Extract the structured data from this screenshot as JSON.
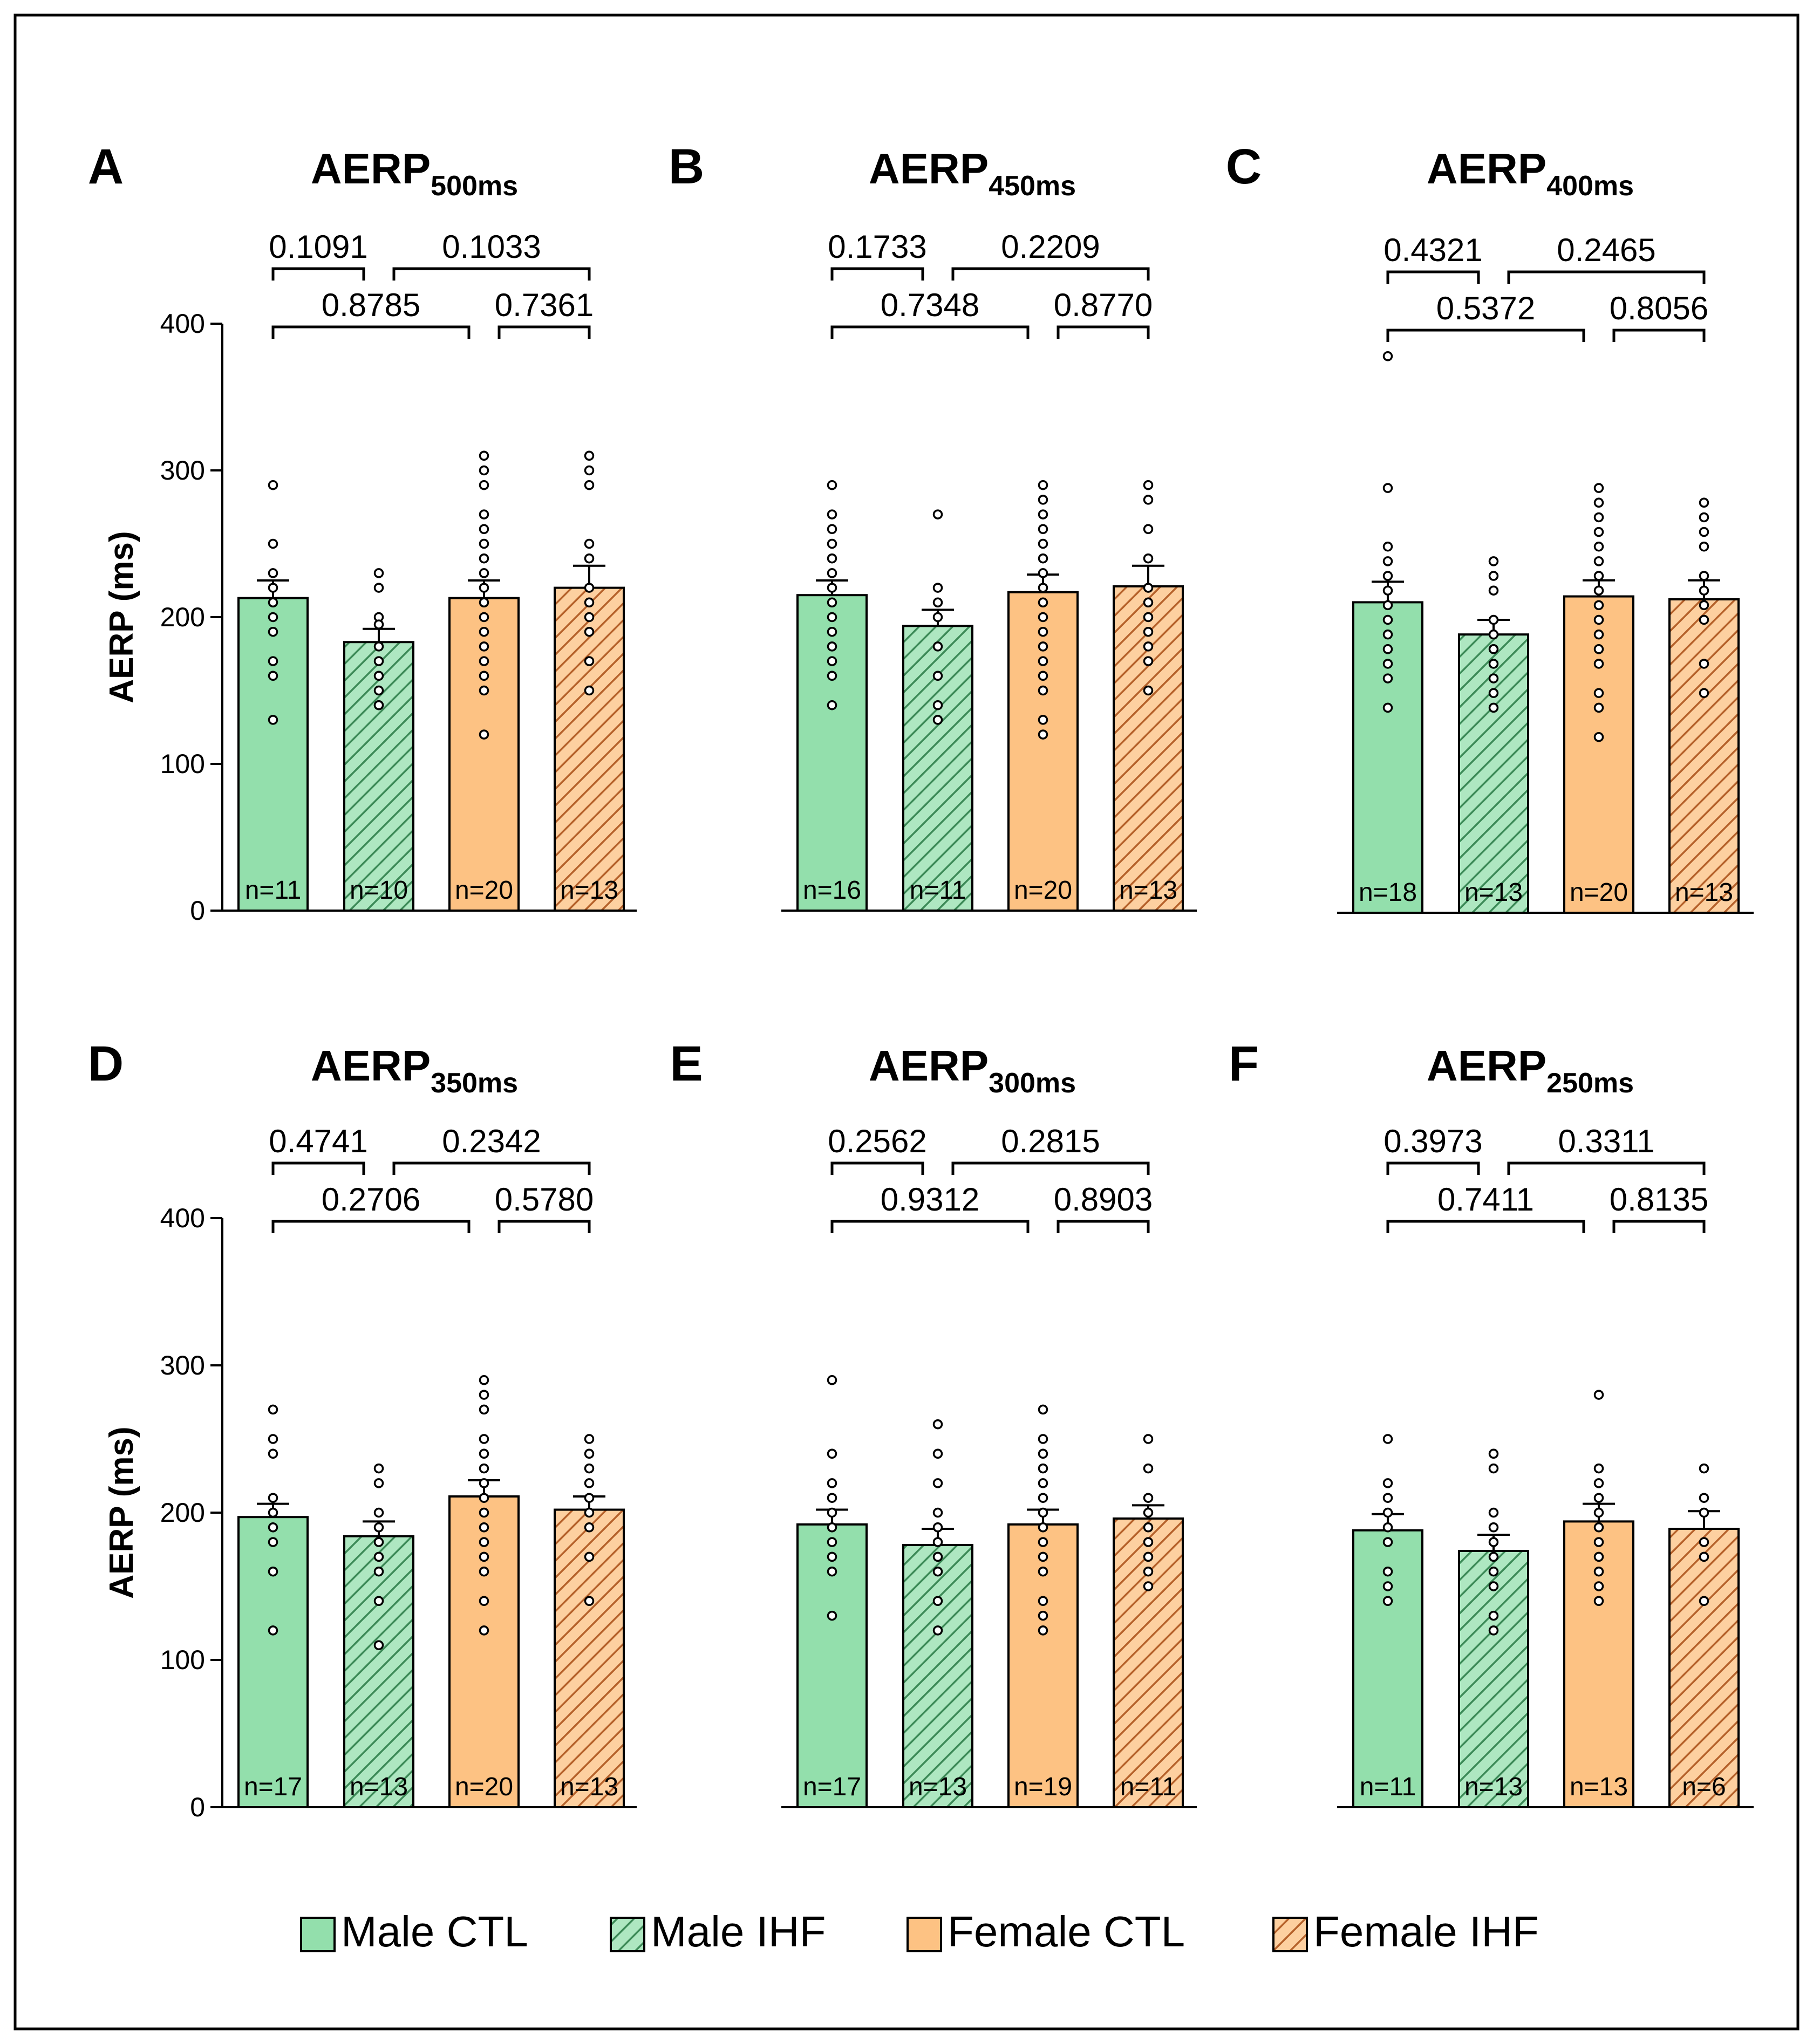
{
  "colors": {
    "male_ctl": "#93dfac",
    "male_ihf_bg": "#aee7c1",
    "male_ihf_hatch": "#3c8a57",
    "female_ctl": "#fdc283",
    "female_ihf_bg": "#fdd0a0",
    "female_ihf_hatch": "#b5612a",
    "ink": "#000000"
  },
  "legend": [
    {
      "key": "male_ctl",
      "label": "Male CTL",
      "hatched": false
    },
    {
      "key": "male_ihf",
      "label": "Male IHF",
      "hatched": true
    },
    {
      "key": "female_ctl",
      "label": "Female CTL",
      "hatched": false
    },
    {
      "key": "female_ihf",
      "label": "Female IHF",
      "hatched": true
    }
  ],
  "chart_data": [
    {
      "type": "bar",
      "panel": "A",
      "title_main": "AERP",
      "title_sub": "500ms",
      "ylabel": "AERP (ms)",
      "ylim": [
        0,
        400
      ],
      "yticks": [
        0,
        100,
        200,
        300,
        400
      ],
      "groups": [
        "Male CTL",
        "Male IHF",
        "Female CTL",
        "Female IHF"
      ],
      "means": [
        213,
        183,
        213,
        220
      ],
      "sem": [
        12,
        9,
        12,
        15
      ],
      "n_labels": [
        "n=11",
        "n=10",
        "n=20",
        "n=13"
      ],
      "points": [
        [
          290,
          250,
          230,
          220,
          210,
          200,
          190,
          170,
          160,
          130
        ],
        [
          230,
          220,
          200,
          195,
          180,
          170,
          160,
          150,
          140,
          140
        ],
        [
          310,
          300,
          290,
          270,
          260,
          250,
          240,
          230,
          220,
          210,
          200,
          190,
          180,
          170,
          160,
          150,
          120
        ],
        [
          310,
          300,
          290,
          250,
          240,
          220,
          210,
          200,
          190,
          170,
          150
        ]
      ],
      "comparisons": [
        {
          "groups": [
            0,
            1
          ],
          "p": "0.1091"
        },
        {
          "groups": [
            1,
            3
          ],
          "p": "0.1033"
        },
        {
          "groups": [
            0,
            2
          ],
          "p": "0.8785"
        },
        {
          "groups": [
            2,
            3
          ],
          "p": "0.7361"
        }
      ]
    },
    {
      "type": "bar",
      "panel": "B",
      "title_main": "AERP",
      "title_sub": "450ms",
      "ylabel": "",
      "ylim": [
        0,
        400
      ],
      "yticks": [],
      "groups": [
        "Male CTL",
        "Male IHF",
        "Female CTL",
        "Female IHF"
      ],
      "means": [
        215,
        194,
        217,
        221
      ],
      "sem": [
        10,
        11,
        12,
        14
      ],
      "n_labels": [
        "n=16",
        "n=11",
        "n=20",
        "n=13"
      ],
      "points": [
        [
          290,
          270,
          260,
          250,
          240,
          230,
          220,
          210,
          200,
          190,
          180,
          170,
          160,
          140
        ],
        [
          270,
          220,
          210,
          200,
          180,
          160,
          140,
          130
        ],
        [
          290,
          280,
          270,
          260,
          250,
          240,
          230,
          220,
          210,
          200,
          190,
          180,
          170,
          160,
          150,
          130,
          120
        ],
        [
          290,
          280,
          260,
          240,
          220,
          210,
          200,
          190,
          180,
          170,
          150
        ]
      ],
      "comparisons": [
        {
          "groups": [
            0,
            1
          ],
          "p": "0.1733"
        },
        {
          "groups": [
            1,
            3
          ],
          "p": "0.2209"
        },
        {
          "groups": [
            0,
            2
          ],
          "p": "0.7348"
        },
        {
          "groups": [
            2,
            3
          ],
          "p": "0.8770"
        }
      ]
    },
    {
      "type": "bar",
      "panel": "C",
      "title_main": "AERP",
      "title_sub": "400ms",
      "ylabel": "",
      "ylim": [
        0,
        400
      ],
      "yticks": [],
      "groups": [
        "Male CTL",
        "Male IHF",
        "Female CTL",
        "Female IHF"
      ],
      "means": [
        212,
        190,
        216,
        214
      ],
      "sem": [
        14,
        10,
        11,
        13
      ],
      "n_labels": [
        "n=18",
        "n=13",
        "n=20",
        "n=13"
      ],
      "points": [
        [
          380,
          290,
          250,
          240,
          230,
          220,
          210,
          200,
          190,
          180,
          170,
          160,
          140
        ],
        [
          240,
          230,
          220,
          200,
          190,
          180,
          170,
          160,
          150,
          140
        ],
        [
          290,
          280,
          270,
          260,
          250,
          240,
          230,
          220,
          210,
          200,
          190,
          180,
          170,
          150,
          140,
          120
        ],
        [
          280,
          270,
          260,
          250,
          230,
          220,
          210,
          200,
          170,
          150
        ]
      ],
      "comparisons": [
        {
          "groups": [
            0,
            1
          ],
          "p": "0.4321"
        },
        {
          "groups": [
            1,
            3
          ],
          "p": "0.2465"
        },
        {
          "groups": [
            0,
            2
          ],
          "p": "0.5372"
        },
        {
          "groups": [
            2,
            3
          ],
          "p": "0.8056"
        }
      ]
    },
    {
      "type": "bar",
      "panel": "D",
      "title_main": "AERP",
      "title_sub": "350ms",
      "ylabel": "AERP (ms)",
      "ylim": [
        0,
        400
      ],
      "yticks": [
        0,
        100,
        200,
        300,
        400
      ],
      "groups": [
        "Male CTL",
        "Male IHF",
        "Female CTL",
        "Female IHF"
      ],
      "means": [
        197,
        184,
        211,
        202
      ],
      "sem": [
        9,
        10,
        11,
        9
      ],
      "n_labels": [
        "n=17",
        "n=13",
        "n=20",
        "n=13"
      ],
      "points": [
        [
          270,
          250,
          240,
          210,
          200,
          190,
          180,
          160,
          120
        ],
        [
          230,
          220,
          200,
          190,
          180,
          170,
          160,
          140,
          110
        ],
        [
          290,
          280,
          270,
          250,
          240,
          230,
          220,
          210,
          200,
          190,
          180,
          170,
          160,
          140,
          120
        ],
        [
          250,
          240,
          230,
          220,
          210,
          200,
          190,
          170,
          140
        ]
      ],
      "comparisons": [
        {
          "groups": [
            0,
            1
          ],
          "p": "0.4741"
        },
        {
          "groups": [
            1,
            3
          ],
          "p": "0.2342"
        },
        {
          "groups": [
            0,
            2
          ],
          "p": "0.2706"
        },
        {
          "groups": [
            2,
            3
          ],
          "p": "0.5780"
        }
      ]
    },
    {
      "type": "bar",
      "panel": "E",
      "title_main": "AERP",
      "title_sub": "300ms",
      "ylabel": "",
      "ylim": [
        0,
        400
      ],
      "yticks": [],
      "groups": [
        "Male CTL",
        "Male IHF",
        "Female CTL",
        "Female IHF"
      ],
      "means": [
        192,
        178,
        192,
        196
      ],
      "sem": [
        10,
        11,
        10,
        9
      ],
      "n_labels": [
        "n=17",
        "n=13",
        "n=19",
        "n=11"
      ],
      "points": [
        [
          290,
          240,
          220,
          210,
          200,
          190,
          180,
          170,
          160,
          130
        ],
        [
          260,
          240,
          220,
          200,
          190,
          180,
          170,
          160,
          140,
          120
        ],
        [
          270,
          250,
          240,
          230,
          220,
          210,
          200,
          190,
          180,
          170,
          160,
          140,
          130,
          120
        ],
        [
          250,
          230,
          210,
          200,
          190,
          180,
          170,
          160,
          150
        ]
      ],
      "comparisons": [
        {
          "groups": [
            0,
            1
          ],
          "p": "0.2562"
        },
        {
          "groups": [
            1,
            3
          ],
          "p": "0.2815"
        },
        {
          "groups": [
            0,
            2
          ],
          "p": "0.9312"
        },
        {
          "groups": [
            2,
            3
          ],
          "p": "0.8903"
        }
      ]
    },
    {
      "type": "bar",
      "panel": "F",
      "title_main": "AERP",
      "title_sub": "250ms",
      "ylabel": "",
      "ylim": [
        0,
        400
      ],
      "yticks": [],
      "groups": [
        "Male CTL",
        "Male IHF",
        "Female CTL",
        "Female IHF"
      ],
      "means": [
        188,
        174,
        194,
        189
      ],
      "sem": [
        11,
        11,
        12,
        12
      ],
      "n_labels": [
        "n=11",
        "n=13",
        "n=13",
        "n=6"
      ],
      "points": [
        [
          250,
          220,
          210,
          200,
          190,
          180,
          160,
          150,
          140
        ],
        [
          240,
          230,
          200,
          190,
          180,
          170,
          160,
          150,
          130,
          120
        ],
        [
          280,
          230,
          220,
          210,
          200,
          190,
          180,
          170,
          160,
          150,
          140
        ],
        [
          230,
          210,
          200,
          180,
          170,
          140
        ]
      ],
      "comparisons": [
        {
          "groups": [
            0,
            1
          ],
          "p": "0.3973"
        },
        {
          "groups": [
            1,
            3
          ],
          "p": "0.3311"
        },
        {
          "groups": [
            0,
            2
          ],
          "p": "0.7411"
        },
        {
          "groups": [
            2,
            3
          ],
          "p": "0.8135"
        }
      ]
    }
  ]
}
